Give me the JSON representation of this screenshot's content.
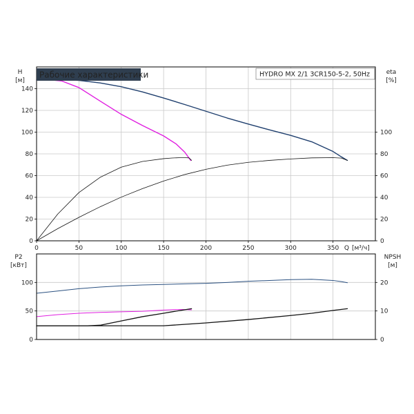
{
  "title": "Рабочие характеристики",
  "pump_label": "HYDRO MX 2/1 3CR150-5-2, 50Hz",
  "colors": {
    "title_bg": "#2f3e4f",
    "title_fg": "#ffffff"
  },
  "axes": {
    "top_left": {
      "label": "H",
      "unit": "[м]"
    },
    "top_right": {
      "label": "eta",
      "unit": "[%]"
    },
    "x": {
      "label": "Q",
      "unit": "[м³/ч]"
    },
    "bottom_left": {
      "label": "P2",
      "unit": "[кВт]"
    },
    "bottom_right": {
      "label": "NPSH",
      "unit": "[м]"
    }
  },
  "chart_data": [
    {
      "type": "line",
      "panel": "head-efficiency",
      "xlim": [
        0,
        400
      ],
      "ylim": [
        0,
        160
      ],
      "ylim_right": [
        0,
        160
      ],
      "x_ticks": [
        0,
        50,
        100,
        150,
        200,
        250,
        300,
        350
      ],
      "y_ticks": [
        0,
        20,
        40,
        60,
        80,
        100,
        120,
        140
      ],
      "y_ticks_right": [
        0,
        20,
        40,
        60,
        80,
        100
      ],
      "grid": true,
      "series": [
        {
          "axis": "left",
          "color": "#1f3f6e",
          "width": 1.4,
          "x": [
            0,
            25,
            50,
            75,
            100,
            125,
            150,
            175,
            200,
            225,
            250,
            275,
            300,
            325,
            350,
            360,
            367
          ],
          "y": [
            148,
            148.6,
            147.6,
            145.3,
            141.8,
            137,
            131.4,
            125.4,
            119.2,
            113,
            107.4,
            102.1,
            97,
            91.1,
            82.2,
            77.2,
            74
          ]
        },
        {
          "axis": "left",
          "color": "#e01ee0",
          "width": 1.4,
          "x": [
            0,
            15,
            30,
            50,
            75,
            100,
            125,
            150,
            165,
            175,
            182
          ],
          "y": [
            148,
            148.2,
            147,
            141,
            128.6,
            116.4,
            106.1,
            96.5,
            89,
            81.5,
            74
          ]
        },
        {
          "axis": "right",
          "color": "#111111",
          "width": 0.8,
          "x": [
            0,
            25,
            50,
            75,
            100,
            125,
            150,
            160,
            170,
            175,
            180,
            183
          ],
          "y": [
            0,
            24.6,
            44.4,
            58.4,
            67.8,
            73,
            75.6,
            76.2,
            76.5,
            76.5,
            76.3,
            74
          ]
        },
        {
          "axis": "right",
          "color": "#111111",
          "width": 0.8,
          "x": [
            0,
            25,
            50,
            75,
            100,
            125,
            150,
            175,
            200,
            225,
            250,
            275,
            300,
            325,
            350,
            360,
            367
          ],
          "y": [
            0,
            11.2,
            21.6,
            31.3,
            40.2,
            48,
            55,
            61,
            65.8,
            69.6,
            72.2,
            74,
            75.3,
            76.3,
            76.5,
            76.1,
            74
          ]
        }
      ]
    },
    {
      "type": "line",
      "panel": "power-npsh",
      "xlim": [
        0,
        400
      ],
      "ylim": [
        0,
        150
      ],
      "ylim_right": [
        0,
        30
      ],
      "y_ticks": [
        0,
        50,
        100
      ],
      "y_ticks_right": [
        0,
        10,
        20
      ],
      "grid": true,
      "series": [
        {
          "axis": "left",
          "color": "#2a5080",
          "width": 1.0,
          "x": [
            0,
            25,
            50,
            75,
            100,
            125,
            150,
            175,
            200,
            225,
            250,
            275,
            300,
            325,
            350,
            360,
            367
          ],
          "y": [
            81,
            85,
            89,
            92,
            94,
            95.5,
            96.5,
            97.5,
            98.5,
            100,
            102,
            103.5,
            105,
            105.5,
            103.5,
            101.5,
            99.5
          ]
        },
        {
          "axis": "left",
          "color": "#e01ee0",
          "width": 1.0,
          "x": [
            0,
            25,
            50,
            75,
            100,
            125,
            150,
            165,
            175,
            183
          ],
          "y": [
            40,
            43.5,
            46,
            47.5,
            48.5,
            49.5,
            51.5,
            52.5,
            52.5,
            52
          ]
        },
        {
          "axis": "right",
          "color": "#111111",
          "width": 1.3,
          "x": [
            0,
            30,
            60,
            75,
            100,
            125,
            150,
            170,
            183
          ],
          "y": [
            4.8,
            4.8,
            4.8,
            5,
            6.5,
            8,
            9.2,
            10.2,
            10.8
          ]
        },
        {
          "axis": "right",
          "color": "#111111",
          "width": 1.3,
          "x": [
            0,
            50,
            100,
            150,
            200,
            250,
            300,
            325,
            350,
            367
          ],
          "y": [
            4.8,
            4.8,
            4.8,
            4.8,
            5.8,
            7,
            8.4,
            9.2,
            10.2,
            10.8
          ]
        }
      ]
    }
  ]
}
